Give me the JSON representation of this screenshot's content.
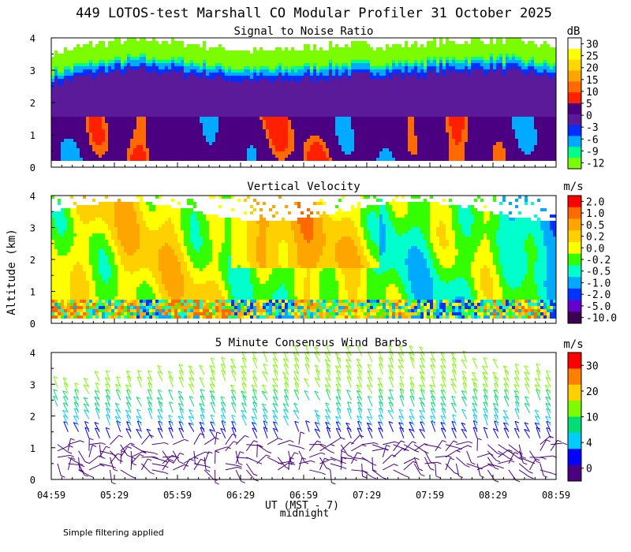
{
  "figure": {
    "title": "449 LOTOS-test Marshall CO Modular Profiler 31 October 2025",
    "ylabel": "Altitude (km)",
    "xlabel": "UT (MST - 7)",
    "xlabel_sub": "midnight",
    "footnote": "Simple filtering applied"
  },
  "chart_data": [
    {
      "type": "heatmap",
      "title": "Signal to Noise Ratio",
      "units": "dB",
      "ylim": [
        0,
        4
      ],
      "yticks": [
        "0",
        "1",
        "2",
        "3",
        "4"
      ],
      "xticks": [
        "04:59",
        "05:29",
        "05:59",
        "06:29",
        "06:59",
        "07:29",
        "07:59",
        "08:29",
        "08:59"
      ],
      "colorbar": [
        "30",
        "25",
        "20",
        "15",
        "10",
        "5",
        "0",
        "-3",
        "-6",
        "-9",
        "-12"
      ],
      "colors": [
        "#ffffff",
        "#ffff00",
        "#ffd700",
        "#ffa500",
        "#ff6a00",
        "#ff2000",
        "#4b0082",
        "#5a1a9a",
        "#0030ff",
        "#00aaff",
        "#00ff88",
        "#7cfc00"
      ]
    },
    {
      "type": "heatmap",
      "title": "Vertical Velocity",
      "units": "m/s",
      "ylim": [
        0,
        4
      ],
      "yticks": [
        "0",
        "1",
        "2",
        "3",
        "4"
      ],
      "xticks": [
        "04:59",
        "05:29",
        "05:59",
        "06:29",
        "06:59",
        "07:29",
        "07:59",
        "08:29",
        "08:59"
      ],
      "colorbar": [
        "2.0",
        "1.0",
        "0.5",
        "0.2",
        "0.0",
        "-0.2",
        "-0.5",
        "-1.0",
        "-2.0",
        "-5.0",
        "-10.0"
      ],
      "colors": [
        "#ff0000",
        "#ff6a00",
        "#ffa500",
        "#ffd000",
        "#ffff00",
        "#33ff00",
        "#00ffcc",
        "#00aaff",
        "#0033ff",
        "#6600cc",
        "#3d0050"
      ]
    },
    {
      "type": "scatter",
      "title": "5 Minute Consensus Wind Barbs",
      "units": "m/s",
      "ylim": [
        0,
        4
      ],
      "yticks": [
        "0",
        "1",
        "2",
        "3",
        "4"
      ],
      "xticks": [
        "04:59",
        "05:29",
        "05:59",
        "06:29",
        "06:59",
        "07:29",
        "07:59",
        "08:29",
        "08:59"
      ],
      "colorbar": [
        "30",
        "20",
        "10",
        "4",
        "0"
      ],
      "colors": [
        "#ff0000",
        "#ff8000",
        "#ffd000",
        "#7cfc00",
        "#00dd77",
        "#00ccff",
        "#0000ff",
        "#4b0082"
      ]
    }
  ]
}
